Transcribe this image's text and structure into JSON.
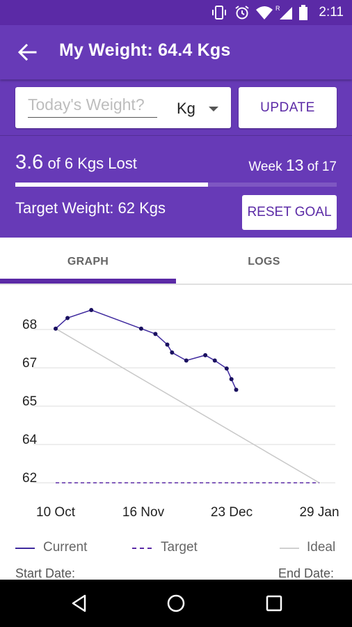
{
  "status_bar": {
    "time": "2:11"
  },
  "appbar": {
    "title": "My Weight: 64.4 Kgs"
  },
  "input": {
    "placeholder": "Today's Weight?",
    "unit": "Kg",
    "update_label": "UPDATE"
  },
  "progress": {
    "lost_amount": "3.6",
    "lost_text": " of 6 Kgs Lost",
    "week_prefix": "Week ",
    "week_number": "13",
    "week_suffix": " of 17",
    "fraction": 0.6,
    "target_text": "Target Weight: 62 Kgs",
    "reset_label": "RESET GOAL"
  },
  "tabs": [
    {
      "label": "GRAPH",
      "selected": true
    },
    {
      "label": "LOGS",
      "selected": false
    }
  ],
  "chart_data": {
    "type": "line",
    "y_tick_labels": [
      "68",
      "67",
      "65",
      "64",
      "62"
    ],
    "x_tick_labels": [
      "10 Oct",
      "16 Nov",
      "23 Dec",
      "29 Jan"
    ],
    "series": [
      {
        "name": "Current",
        "style": "solid-with-markers",
        "color": "#3f2a9e",
        "points": [
          {
            "x": "10 Oct",
            "y": 67.8
          },
          {
            "x": "15 Oct",
            "y": 68.2
          },
          {
            "x": "25 Oct",
            "y": 68.5
          },
          {
            "x": "15 Nov",
            "y": 67.8
          },
          {
            "x": "21 Nov",
            "y": 67.6
          },
          {
            "x": "26 Nov",
            "y": 67.2
          },
          {
            "x": "28 Nov",
            "y": 66.9
          },
          {
            "x": "4 Dec",
            "y": 66.6
          },
          {
            "x": "12 Dec",
            "y": 66.8
          },
          {
            "x": "16 Dec",
            "y": 66.6
          },
          {
            "x": "21 Dec",
            "y": 66.3
          },
          {
            "x": "23 Dec",
            "y": 65.9
          },
          {
            "x": "25 Dec",
            "y": 65.5
          }
        ]
      },
      {
        "name": "Target",
        "style": "dashed",
        "color": "#5b2aa6",
        "points": [
          {
            "x": "10 Oct",
            "y": 62
          },
          {
            "x": "29 Jan",
            "y": 62
          }
        ]
      },
      {
        "name": "Ideal",
        "style": "solid",
        "color": "#c8c8c8",
        "points": [
          {
            "x": "10 Oct",
            "y": 67.8
          },
          {
            "x": "29 Jan",
            "y": 62
          }
        ]
      }
    ],
    "grid": true,
    "legend_position": "bottom"
  },
  "legend": {
    "current": "Current",
    "target": "Target",
    "ideal": "Ideal"
  },
  "footer": {
    "start_date": "Start Date:",
    "end_date": "End Date:"
  },
  "colors": {
    "primary": "#673ab7",
    "primary_dark": "#5b2aa6",
    "accent_text": "#5b2aa6"
  }
}
